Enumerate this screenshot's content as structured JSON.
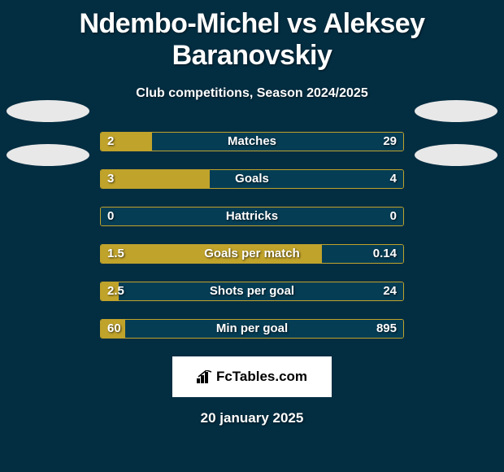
{
  "title": "Ndembo-Michel vs Aleksey Baranovskiy",
  "subtitle": "Club competitions, Season 2024/2025",
  "colors": {
    "background": "#032d41",
    "left_fill": "#c0a32b",
    "right_fill": "#053d55",
    "border": "#c0a32b",
    "oval": "#e8e8e8",
    "logo_bg": "#ffffff"
  },
  "stats": [
    {
      "label": "Matches",
      "left_value": "2",
      "right_value": "29",
      "left_pct": 17,
      "right_pct": 83
    },
    {
      "label": "Goals",
      "left_value": "3",
      "right_value": "4",
      "left_pct": 36,
      "right_pct": 64
    },
    {
      "label": "Hattricks",
      "left_value": "0",
      "right_value": "0",
      "left_pct": 0,
      "right_pct": 100
    },
    {
      "label": "Goals per match",
      "left_value": "1.5",
      "right_value": "0.14",
      "left_pct": 73,
      "right_pct": 27
    },
    {
      "label": "Shots per goal",
      "left_value": "2.5",
      "right_value": "24",
      "left_pct": 6,
      "right_pct": 94
    },
    {
      "label": "Min per goal",
      "left_value": "60",
      "right_value": "895",
      "left_pct": 8,
      "right_pct": 92
    }
  ],
  "logo_text": "FcTables.com",
  "date": "20 january 2025"
}
